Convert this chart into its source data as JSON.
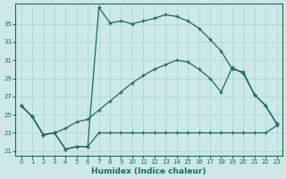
{
  "xlabel": "Humidex (Indice chaleur)",
  "bg_color": "#cce8e8",
  "line_color": "#1a6b5e",
  "grid_color": "#aad4d4",
  "ylim": [
    20.5,
    37.2
  ],
  "xlim": [
    -0.5,
    23.5
  ],
  "yticks": [
    21,
    23,
    25,
    27,
    29,
    31,
    33,
    35
  ],
  "xticks": [
    0,
    1,
    2,
    3,
    4,
    5,
    6,
    7,
    8,
    9,
    10,
    11,
    12,
    13,
    14,
    15,
    16,
    17,
    18,
    19,
    20,
    21,
    22,
    23
  ],
  "curve_peak_x": [
    0,
    1,
    2,
    3,
    4,
    5,
    6,
    7,
    8,
    9,
    10,
    11,
    12,
    13,
    14,
    15,
    16,
    17,
    18,
    19,
    20,
    21,
    22,
    23
  ],
  "curve_peak_y": [
    26.0,
    24.8,
    22.8,
    23.0,
    21.2,
    21.5,
    21.5,
    36.8,
    35.1,
    35.3,
    35.0,
    35.3,
    35.6,
    36.0,
    35.8,
    35.3,
    34.5,
    33.3,
    32.0,
    30.0,
    29.7,
    27.2,
    26.0,
    24.0
  ],
  "curve_diag_x": [
    0,
    1,
    2,
    3,
    4,
    5,
    6,
    7,
    8,
    9,
    10,
    11,
    12,
    13,
    14,
    15,
    16,
    17,
    18,
    19,
    20,
    21,
    22,
    23
  ],
  "curve_diag_y": [
    26.0,
    24.8,
    22.8,
    23.0,
    23.5,
    24.2,
    24.5,
    25.5,
    26.5,
    27.5,
    28.5,
    29.3,
    30.0,
    30.5,
    31.0,
    30.8,
    30.0,
    29.0,
    27.5,
    30.2,
    29.5,
    27.2,
    26.0,
    24.0
  ],
  "curve_flat_x": [
    0,
    1,
    2,
    3,
    4,
    5,
    6,
    7,
    8,
    9,
    10,
    11,
    12,
    13,
    14,
    15,
    16,
    17,
    18,
    19,
    20,
    21,
    22,
    23
  ],
  "curve_flat_y": [
    26.0,
    24.8,
    22.8,
    23.0,
    21.2,
    21.5,
    21.5,
    23.0,
    23.0,
    23.0,
    23.0,
    23.0,
    23.0,
    23.0,
    23.0,
    23.0,
    23.0,
    23.0,
    23.0,
    23.0,
    23.0,
    23.0,
    23.0,
    23.8
  ]
}
